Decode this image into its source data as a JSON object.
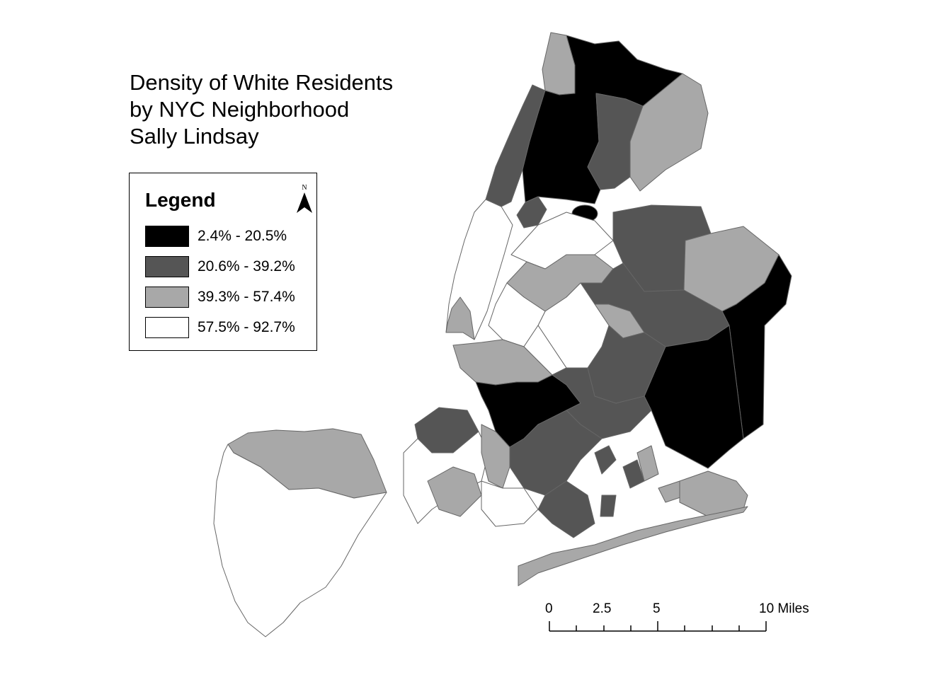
{
  "title": {
    "line1": "Density of White Residents",
    "line2": "by NYC Neighborhood",
    "line3": "Sally Lindsay"
  },
  "legend": {
    "title": "Legend",
    "north_label": "N",
    "classes": [
      {
        "label": "2.4% - 20.5%",
        "color": "#000000"
      },
      {
        "label": "20.6% - 39.2%",
        "color": "#555555"
      },
      {
        "label": "39.3% - 57.4%",
        "color": "#a8a8a8"
      },
      {
        "label": "57.5% - 92.7%",
        "color": "#ffffff"
      }
    ]
  },
  "scale_bar": {
    "labels": [
      "0",
      "2.5",
      "5",
      "10 Miles"
    ]
  },
  "icons": [
    "north-arrow-icon"
  ]
}
